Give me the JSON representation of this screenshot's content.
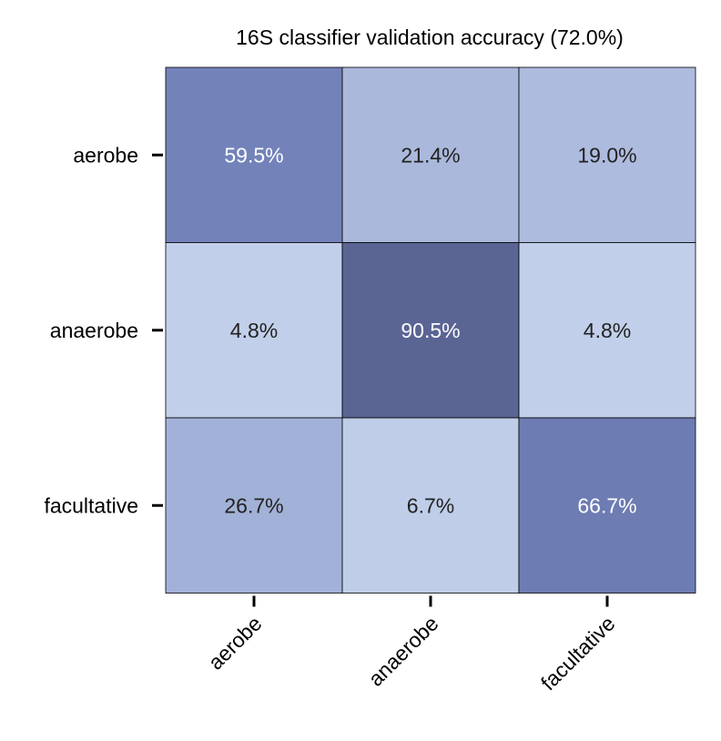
{
  "chart_data": {
    "type": "heatmap",
    "title": "16S classifier validation accuracy (72.0%)",
    "xlabel": "",
    "ylabel": "",
    "rows": [
      "aerobe",
      "anaerobe",
      "facultative"
    ],
    "columns": [
      "aerobe",
      "anaerobe",
      "facultative"
    ],
    "values": [
      [
        59.5,
        21.4,
        19.0
      ],
      [
        4.8,
        90.5,
        4.8
      ],
      [
        26.7,
        6.7,
        66.7
      ]
    ],
    "cell_labels": [
      [
        "59.5%",
        "21.4%",
        "19.0%"
      ],
      [
        "4.8%",
        "90.5%",
        "4.8%"
      ],
      [
        "26.7%",
        "6.7%",
        "66.7%"
      ]
    ],
    "colors": {
      "low": "#c9d6ee",
      "mid": "#7282ba",
      "high": "#545c88",
      "text_dark": "#222222",
      "text_light": "#ffffff",
      "grid_line": "#000000"
    },
    "legend": "none"
  }
}
